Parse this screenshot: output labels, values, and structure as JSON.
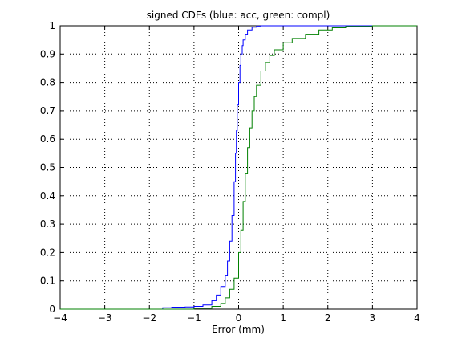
{
  "chart_data": {
    "type": "line",
    "title": "signed CDFs (blue: acc, green: compl)",
    "xlabel": "Error (mm)",
    "ylabel": "",
    "xlim": [
      -4,
      4
    ],
    "ylim": [
      0,
      1
    ],
    "xticks": [
      -4,
      -3,
      -2,
      -1,
      0,
      1,
      2,
      3,
      4
    ],
    "yticks": [
      0,
      0.1,
      0.2,
      0.3,
      0.4,
      0.5,
      0.6,
      0.7,
      0.8,
      0.9,
      1
    ],
    "xtick_labels": [
      "−4",
      "−3",
      "−2",
      "−1",
      "0",
      "1",
      "2",
      "3",
      "4"
    ],
    "ytick_labels": [
      "0",
      "0.1",
      "0.2",
      "0.3",
      "0.4",
      "0.5",
      "0.6",
      "0.7",
      "0.8",
      "0.9",
      "1"
    ],
    "grid": true,
    "grid_style": "dotted",
    "series": [
      {
        "color": "#0000ff",
        "x": [
          -4,
          -1.7,
          -1.5,
          -1.2,
          -1.0,
          -0.8,
          -0.6,
          -0.5,
          -0.4,
          -0.3,
          -0.25,
          -0.2,
          -0.15,
          -0.1,
          -0.07,
          -0.05,
          -0.03,
          0.0,
          0.03,
          0.05,
          0.08,
          0.1,
          0.15,
          0.2,
          0.3,
          0.4,
          0.5,
          0.7,
          1.0,
          4
        ],
        "y": [
          0,
          0.005,
          0.007,
          0.008,
          0.01,
          0.015,
          0.03,
          0.05,
          0.08,
          0.12,
          0.17,
          0.24,
          0.33,
          0.45,
          0.55,
          0.63,
          0.72,
          0.8,
          0.86,
          0.9,
          0.93,
          0.95,
          0.97,
          0.985,
          0.995,
          0.999,
          1.0,
          1.0,
          1.0,
          1.0
        ]
      },
      {
        "color": "#008000",
        "x": [
          -4,
          -2,
          -1.0,
          -0.6,
          -0.4,
          -0.3,
          -0.2,
          -0.1,
          0.0,
          0.05,
          0.1,
          0.15,
          0.2,
          0.25,
          0.3,
          0.35,
          0.4,
          0.5,
          0.6,
          0.7,
          0.8,
          1.0,
          1.2,
          1.5,
          1.8,
          2.1,
          2.4,
          3.0,
          4
        ],
        "y": [
          0,
          0,
          0.003,
          0.01,
          0.02,
          0.04,
          0.07,
          0.11,
          0.2,
          0.28,
          0.38,
          0.48,
          0.57,
          0.64,
          0.7,
          0.75,
          0.79,
          0.84,
          0.87,
          0.895,
          0.915,
          0.94,
          0.955,
          0.97,
          0.985,
          0.993,
          0.998,
          1.0,
          1.0
        ]
      }
    ]
  }
}
